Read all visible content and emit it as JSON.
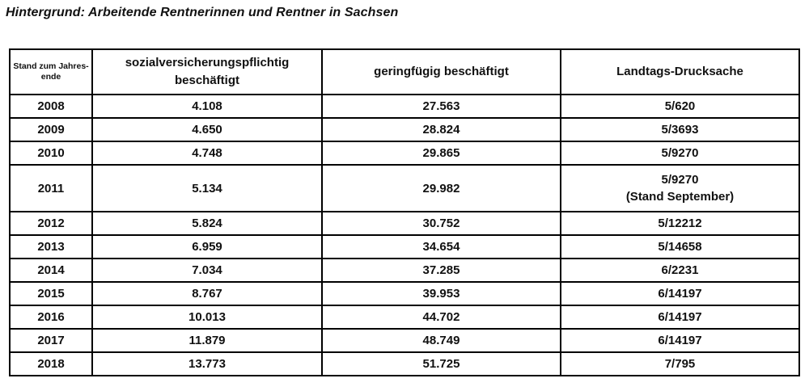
{
  "title": "Hintergrund: Arbeitende Rentnerinnen und Rentner in Sachsen",
  "table": {
    "headers": [
      {
        "lines": [
          "Stand zum",
          "Jahres-",
          "ende"
        ]
      },
      {
        "lines": [
          "sozialversicherungspflichtig",
          "beschäftigt"
        ]
      },
      {
        "lines": [
          "geringfügig",
          "beschäftigt"
        ]
      },
      {
        "lines": [
          "Landtags-Drucksache"
        ]
      }
    ],
    "rows": [
      {
        "year": "2008",
        "svp": "4.108",
        "geringfuegig": "27.563",
        "drucksache": "5/620"
      },
      {
        "year": "2009",
        "svp": "4.650",
        "geringfuegig": "28.824",
        "drucksache": "5/3693"
      },
      {
        "year": "2010",
        "svp": "4.748",
        "geringfuegig": "29.865",
        "drucksache": "5/9270"
      },
      {
        "year": "2011",
        "svp": "5.134",
        "geringfuegig": "29.982",
        "drucksache": "5/9270",
        "drucksache_note": "(Stand September)"
      },
      {
        "year": "2012",
        "svp": "5.824",
        "geringfuegig": "30.752",
        "drucksache": "5/12212"
      },
      {
        "year": "2013",
        "svp": "6.959",
        "geringfuegig": "34.654",
        "drucksache": "5/14658"
      },
      {
        "year": "2014",
        "svp": "7.034",
        "geringfuegig": "37.285",
        "drucksache": "6/2231"
      },
      {
        "year": "2015",
        "svp": "8.767",
        "geringfuegig": "39.953",
        "drucksache": "6/14197"
      },
      {
        "year": "2016",
        "svp": "10.013",
        "geringfuegig": "44.702",
        "drucksache": "6/14197"
      },
      {
        "year": "2017",
        "svp": "11.879",
        "geringfuegig": "48.749",
        "drucksache": "6/14197"
      },
      {
        "year": "2018",
        "svp": "13.773",
        "geringfuegig": "51.725",
        "drucksache": "7/795"
      }
    ]
  }
}
